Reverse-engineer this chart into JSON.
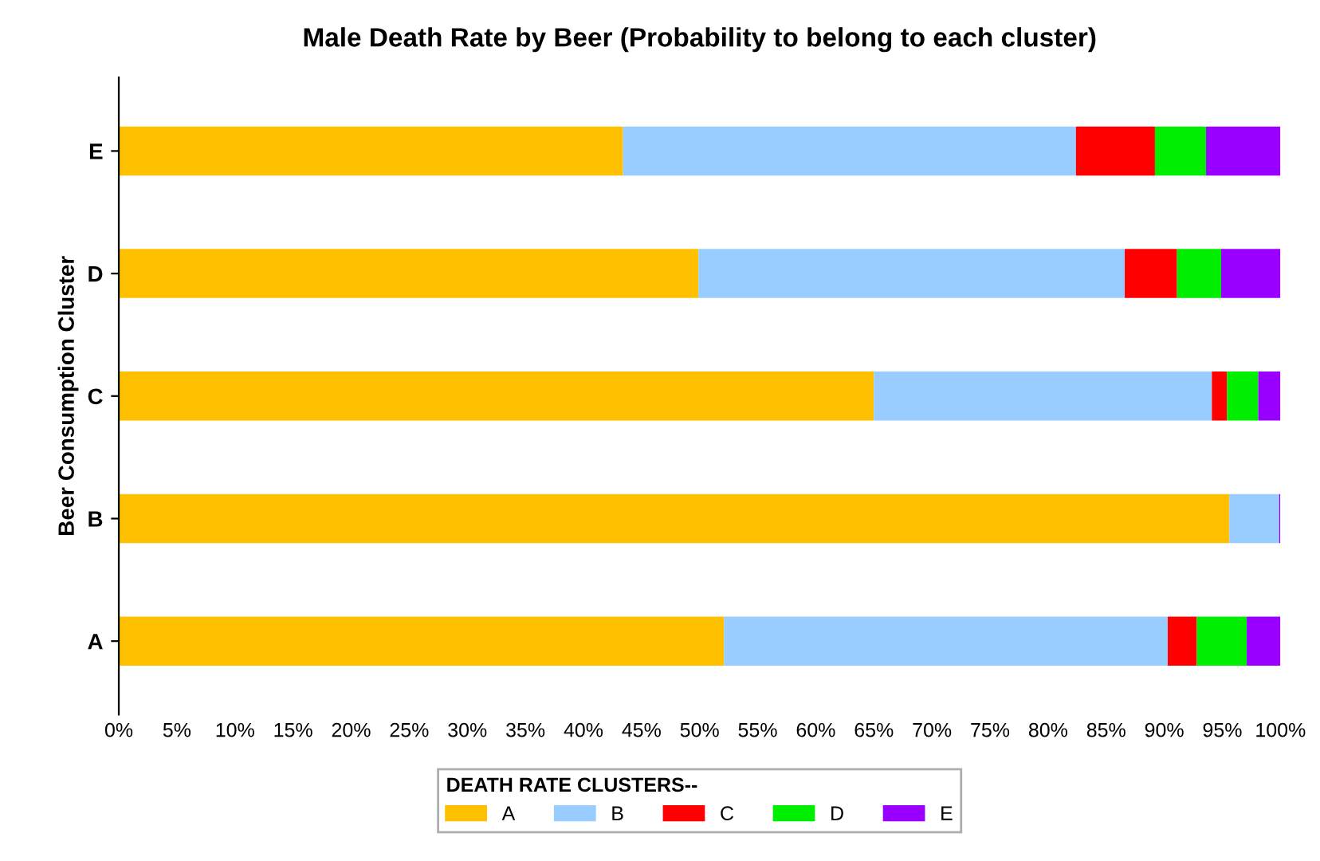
{
  "chart_data": {
    "type": "bar",
    "orientation": "horizontal",
    "stacked": true,
    "title": "Male Death Rate by Beer (Probability to belong to each cluster)",
    "ylabel": "Beer Consumption Cluster",
    "legend_title": "DEATH RATE CLUSTERS--",
    "legend": "bottom",
    "categories": [
      "E",
      "D",
      "C",
      "B",
      "A"
    ],
    "series": [
      {
        "name": "A",
        "color": "#ffc000",
        "values": [
          43.4,
          49.9,
          65.0,
          95.6,
          52.1
        ]
      },
      {
        "name": "B",
        "color": "#99ccff",
        "values": [
          39.0,
          36.7,
          29.1,
          4.3,
          38.2
        ]
      },
      {
        "name": "C",
        "color": "#ff0000",
        "values": [
          6.8,
          4.5,
          1.3,
          0,
          2.5
        ]
      },
      {
        "name": "D",
        "color": "#00ee00",
        "values": [
          4.4,
          3.8,
          2.7,
          0,
          4.3
        ]
      },
      {
        "name": "E",
        "color": "#9900ff",
        "values": [
          6.4,
          5.1,
          1.9,
          0.1,
          2.9
        ]
      }
    ],
    "xlim": [
      0,
      100
    ],
    "xticks": [
      {
        "value": 0,
        "label": "0%"
      },
      {
        "value": 5,
        "label": "5%"
      },
      {
        "value": 10,
        "label": "10%"
      },
      {
        "value": 15,
        "label": "15%"
      },
      {
        "value": 20,
        "label": "20%"
      },
      {
        "value": 25,
        "label": "25%"
      },
      {
        "value": 30,
        "label": "30%"
      },
      {
        "value": 35,
        "label": "35%"
      },
      {
        "value": 40,
        "label": "40%"
      },
      {
        "value": 45,
        "label": "45%"
      },
      {
        "value": 50,
        "label": "50%"
      },
      {
        "value": 55,
        "label": "55%"
      },
      {
        "value": 60,
        "label": "60%"
      },
      {
        "value": 65,
        "label": "65%"
      },
      {
        "value": 70,
        "label": "70%"
      },
      {
        "value": 75,
        "label": "75%"
      },
      {
        "value": 80,
        "label": "80%"
      },
      {
        "value": 85,
        "label": "85%"
      },
      {
        "value": 90,
        "label": "90%"
      },
      {
        "value": 95,
        "label": "95%"
      },
      {
        "value": 100,
        "label": "100%"
      }
    ],
    "grid": false
  }
}
